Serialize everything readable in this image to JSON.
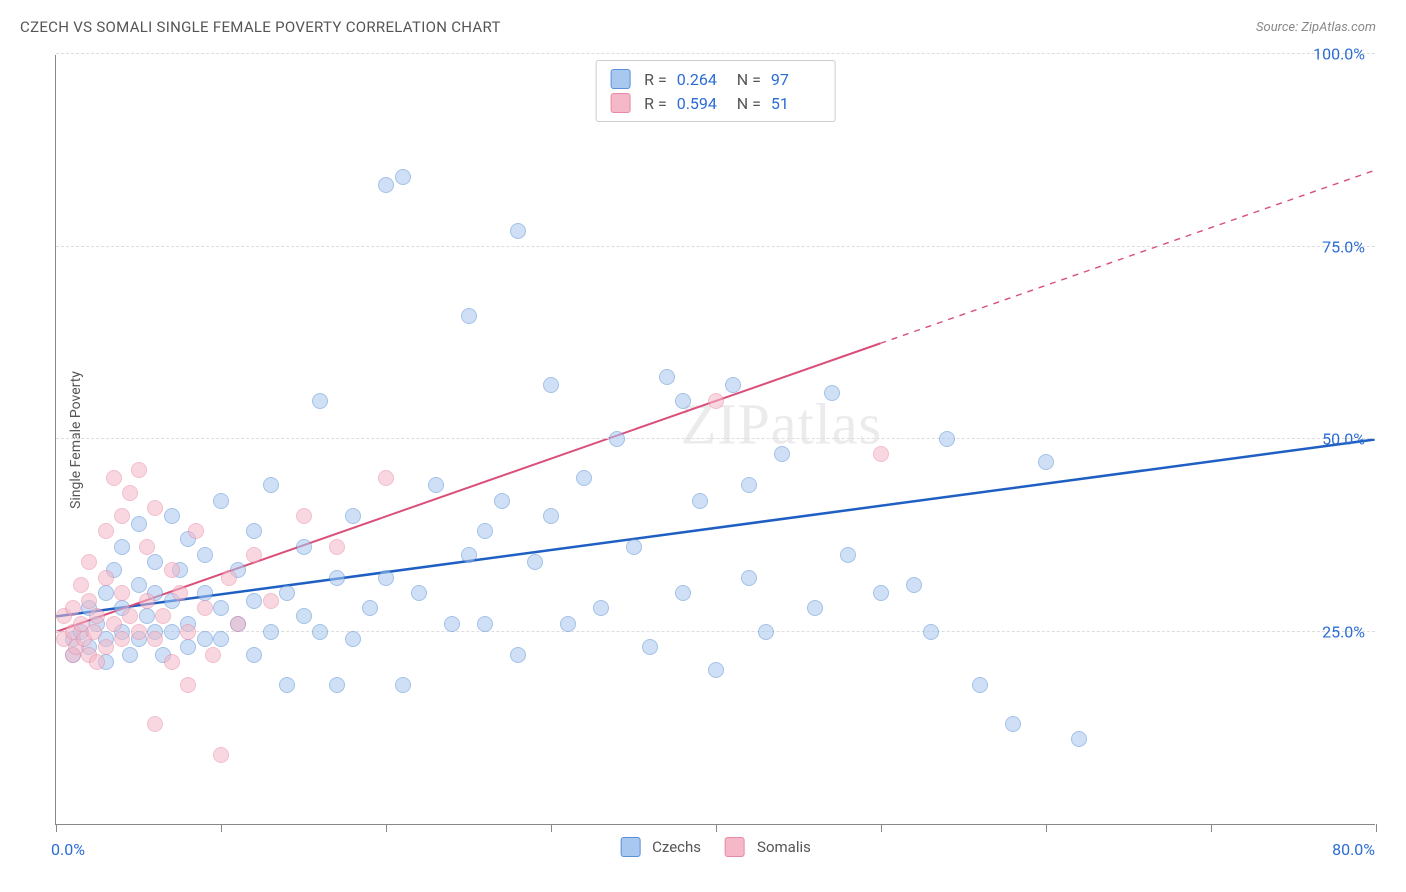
{
  "title": "CZECH VS SOMALI SINGLE FEMALE POVERTY CORRELATION CHART",
  "source": "Source: ZipAtlas.com",
  "ylabel": "Single Female Poverty",
  "watermark": "ZIPatlas",
  "chart": {
    "type": "scatter",
    "xlim": [
      0,
      80
    ],
    "ylim": [
      0,
      100
    ],
    "xlim_labels": [
      "0.0%",
      "80.0%"
    ],
    "ytick_positions": [
      25,
      50,
      75,
      100
    ],
    "ytick_labels": [
      "25.0%",
      "50.0%",
      "75.0%",
      "100.0%"
    ],
    "xtick_positions": [
      0,
      10,
      20,
      30,
      40,
      50,
      60,
      70,
      80
    ],
    "background_color": "#ffffff",
    "grid_color": "#dddddd",
    "axis_color": "#888888",
    "axis_label_color": "#2b6cd4",
    "marker_radius": 8,
    "marker_opacity": 0.55,
    "series": [
      {
        "name": "Czechs",
        "color_fill": "#a8c8f0",
        "color_stroke": "#5b8fd6",
        "R": "0.264",
        "N": "97",
        "regression": {
          "x1": 0,
          "y1": 27,
          "x2": 80,
          "y2": 50,
          "stroke": "#1f5fc4",
          "width": 2.5,
          "solid_to_x": 80
        },
        "points": [
          [
            1,
            22
          ],
          [
            1,
            24
          ],
          [
            1.5,
            25
          ],
          [
            2,
            23
          ],
          [
            2,
            28
          ],
          [
            2.5,
            26
          ],
          [
            3,
            24
          ],
          [
            3,
            30
          ],
          [
            3,
            21
          ],
          [
            3.5,
            33
          ],
          [
            4,
            25
          ],
          [
            4,
            28
          ],
          [
            4,
            36
          ],
          [
            4.5,
            22
          ],
          [
            5,
            31
          ],
          [
            5,
            24
          ],
          [
            5,
            39
          ],
          [
            5.5,
            27
          ],
          [
            6,
            25
          ],
          [
            6,
            30
          ],
          [
            6,
            34
          ],
          [
            6.5,
            22
          ],
          [
            7,
            29
          ],
          [
            7,
            25
          ],
          [
            7,
            40
          ],
          [
            7.5,
            33
          ],
          [
            8,
            26
          ],
          [
            8,
            37
          ],
          [
            8,
            23
          ],
          [
            9,
            30
          ],
          [
            9,
            35
          ],
          [
            9,
            24
          ],
          [
            10,
            28
          ],
          [
            10,
            42
          ],
          [
            10,
            24
          ],
          [
            11,
            33
          ],
          [
            11,
            26
          ],
          [
            12,
            29
          ],
          [
            12,
            38
          ],
          [
            12,
            22
          ],
          [
            13,
            25
          ],
          [
            13,
            44
          ],
          [
            14,
            30
          ],
          [
            14,
            18
          ],
          [
            15,
            27
          ],
          [
            15,
            36
          ],
          [
            16,
            25
          ],
          [
            16,
            55
          ],
          [
            17,
            32
          ],
          [
            18,
            40
          ],
          [
            18,
            24
          ],
          [
            19,
            28
          ],
          [
            20,
            83
          ],
          [
            20,
            32
          ],
          [
            21,
            18
          ],
          [
            21,
            84
          ],
          [
            22,
            30
          ],
          [
            23,
            44
          ],
          [
            24,
            26
          ],
          [
            25,
            35
          ],
          [
            25,
            66
          ],
          [
            26,
            38
          ],
          [
            27,
            42
          ],
          [
            28,
            22
          ],
          [
            28,
            77
          ],
          [
            29,
            34
          ],
          [
            30,
            40
          ],
          [
            30,
            57
          ],
          [
            31,
            26
          ],
          [
            32,
            45
          ],
          [
            33,
            28
          ],
          [
            34,
            50
          ],
          [
            35,
            36
          ],
          [
            36,
            23
          ],
          [
            37,
            58
          ],
          [
            38,
            30
          ],
          [
            39,
            42
          ],
          [
            40,
            20
          ],
          [
            41,
            57
          ],
          [
            42,
            32
          ],
          [
            43,
            25
          ],
          [
            44,
            48
          ],
          [
            46,
            28
          ],
          [
            48,
            35
          ],
          [
            50,
            30
          ],
          [
            52,
            31
          ],
          [
            54,
            50
          ],
          [
            56,
            18
          ],
          [
            58,
            13
          ],
          [
            60,
            47
          ],
          [
            62,
            11
          ],
          [
            47,
            56
          ],
          [
            38,
            55
          ],
          [
            26,
            26
          ],
          [
            17,
            18
          ],
          [
            53,
            25
          ],
          [
            42,
            44
          ]
        ]
      },
      {
        "name": "Somalis",
        "color_fill": "#f5b8c8",
        "color_stroke": "#e88aa4",
        "R": "0.594",
        "N": "51",
        "regression": {
          "x1": 0,
          "y1": 25,
          "x2": 80,
          "y2": 85,
          "stroke": "#d94f78",
          "width": 2,
          "solid_to_x": 50
        },
        "points": [
          [
            0.5,
            24
          ],
          [
            0.5,
            27
          ],
          [
            1,
            22
          ],
          [
            1,
            25
          ],
          [
            1,
            28
          ],
          [
            1.2,
            23
          ],
          [
            1.5,
            26
          ],
          [
            1.5,
            31
          ],
          [
            1.7,
            24
          ],
          [
            2,
            22
          ],
          [
            2,
            29
          ],
          [
            2,
            34
          ],
          [
            2.3,
            25
          ],
          [
            2.5,
            27
          ],
          [
            2.5,
            21
          ],
          [
            3,
            23
          ],
          [
            3,
            32
          ],
          [
            3,
            38
          ],
          [
            3.5,
            26
          ],
          [
            3.5,
            45
          ],
          [
            4,
            24
          ],
          [
            4,
            30
          ],
          [
            4,
            40
          ],
          [
            4.5,
            27
          ],
          [
            4.5,
            43
          ],
          [
            5,
            25
          ],
          [
            5,
            46
          ],
          [
            5.5,
            29
          ],
          [
            5.5,
            36
          ],
          [
            6,
            24
          ],
          [
            6,
            41
          ],
          [
            6,
            13
          ],
          [
            6.5,
            27
          ],
          [
            7,
            33
          ],
          [
            7,
            21
          ],
          [
            7.5,
            30
          ],
          [
            8,
            25
          ],
          [
            8,
            18
          ],
          [
            8.5,
            38
          ],
          [
            9,
            28
          ],
          [
            9.5,
            22
          ],
          [
            10,
            9
          ],
          [
            10.5,
            32
          ],
          [
            11,
            26
          ],
          [
            12,
            35
          ],
          [
            13,
            29
          ],
          [
            15,
            40
          ],
          [
            17,
            36
          ],
          [
            20,
            45
          ],
          [
            40,
            55
          ],
          [
            50,
            48
          ]
        ]
      }
    ]
  },
  "legend_bottom": [
    {
      "label": "Czechs",
      "fill": "#a8c8f0",
      "stroke": "#5b8fd6"
    },
    {
      "label": "Somalis",
      "fill": "#f5b8c8",
      "stroke": "#e88aa4"
    }
  ]
}
